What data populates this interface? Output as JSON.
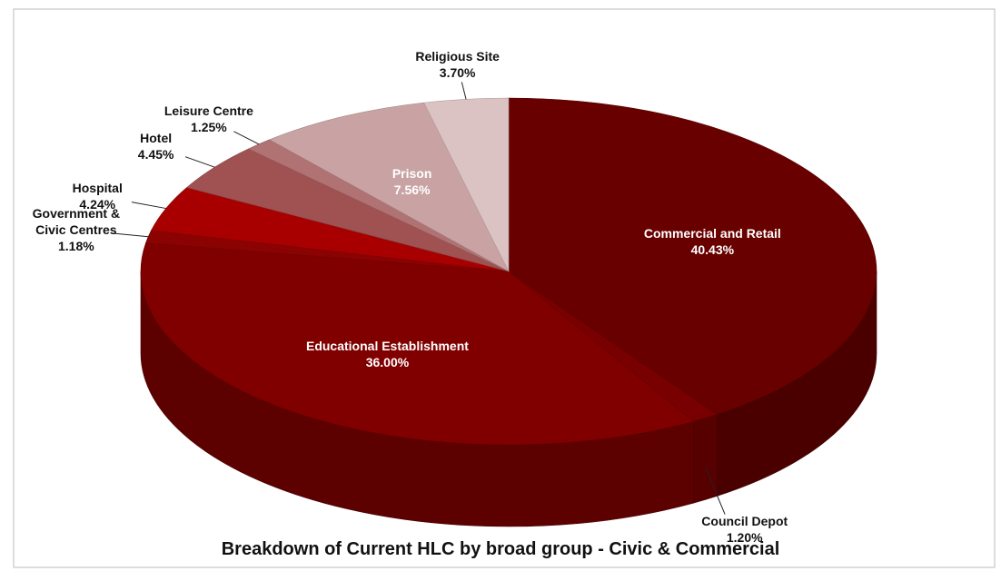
{
  "chart_data": {
    "type": "pie",
    "title": "Breakdown of Current HLC by broad group - Civic & Commercial",
    "categories": [
      "Commercial and Retail",
      "Council Depot",
      "Educational Establishment",
      "Government & Civic Centres",
      "Hospital",
      "Hotel",
      "Leisure Centre",
      "Prison",
      "Religious Site"
    ],
    "values": [
      40.43,
      1.2,
      36.0,
      1.18,
      4.24,
      4.45,
      1.25,
      7.56,
      3.7
    ],
    "value_labels": [
      "40.43%",
      "1.20%",
      "36.00%",
      "1.18%",
      "4.24%",
      "4.45%",
      "1.25%",
      "7.56%",
      "3.70%"
    ],
    "colors": [
      "#680000",
      "#780000",
      "#800000",
      "#8a0202",
      "#a80000",
      "#a05252",
      "#b07272",
      "#c9a3a3",
      "#dcc3c3"
    ]
  }
}
